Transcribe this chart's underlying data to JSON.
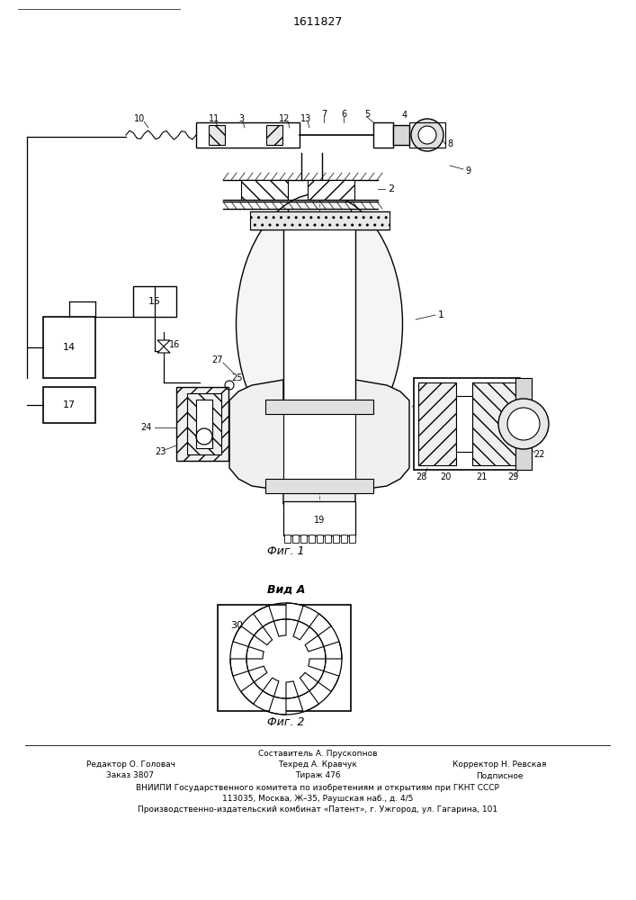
{
  "patent_number": "1611827",
  "fig1_label": "Фиг. 1",
  "fig2_label": "Фиг. 2",
  "view_label": "Вид A",
  "footer_line1": "Составитель А. Прускопнов",
  "footer_line2a": "Редактор О. Головач",
  "footer_line2b": "Техред А. Кравчук",
  "footer_line2c": "Корректор Н. Ревская",
  "footer_line3a": "Заказ 3807",
  "footer_line3b": "Тираж 476",
  "footer_line3c": "Подписное",
  "footer_line4": "ВНИИПИ Государственного комитета по изобретениям и открытиям при ГКНТ СССР",
  "footer_line5": "113035, Москва, Ж–35, Раушская наб., д. 4/5",
  "footer_line6": "Производственно-издательский комбинат «Патент», г. Ужгород, ул. Гагарина, 101",
  "bg_color": "#ffffff",
  "line_color": "#000000"
}
